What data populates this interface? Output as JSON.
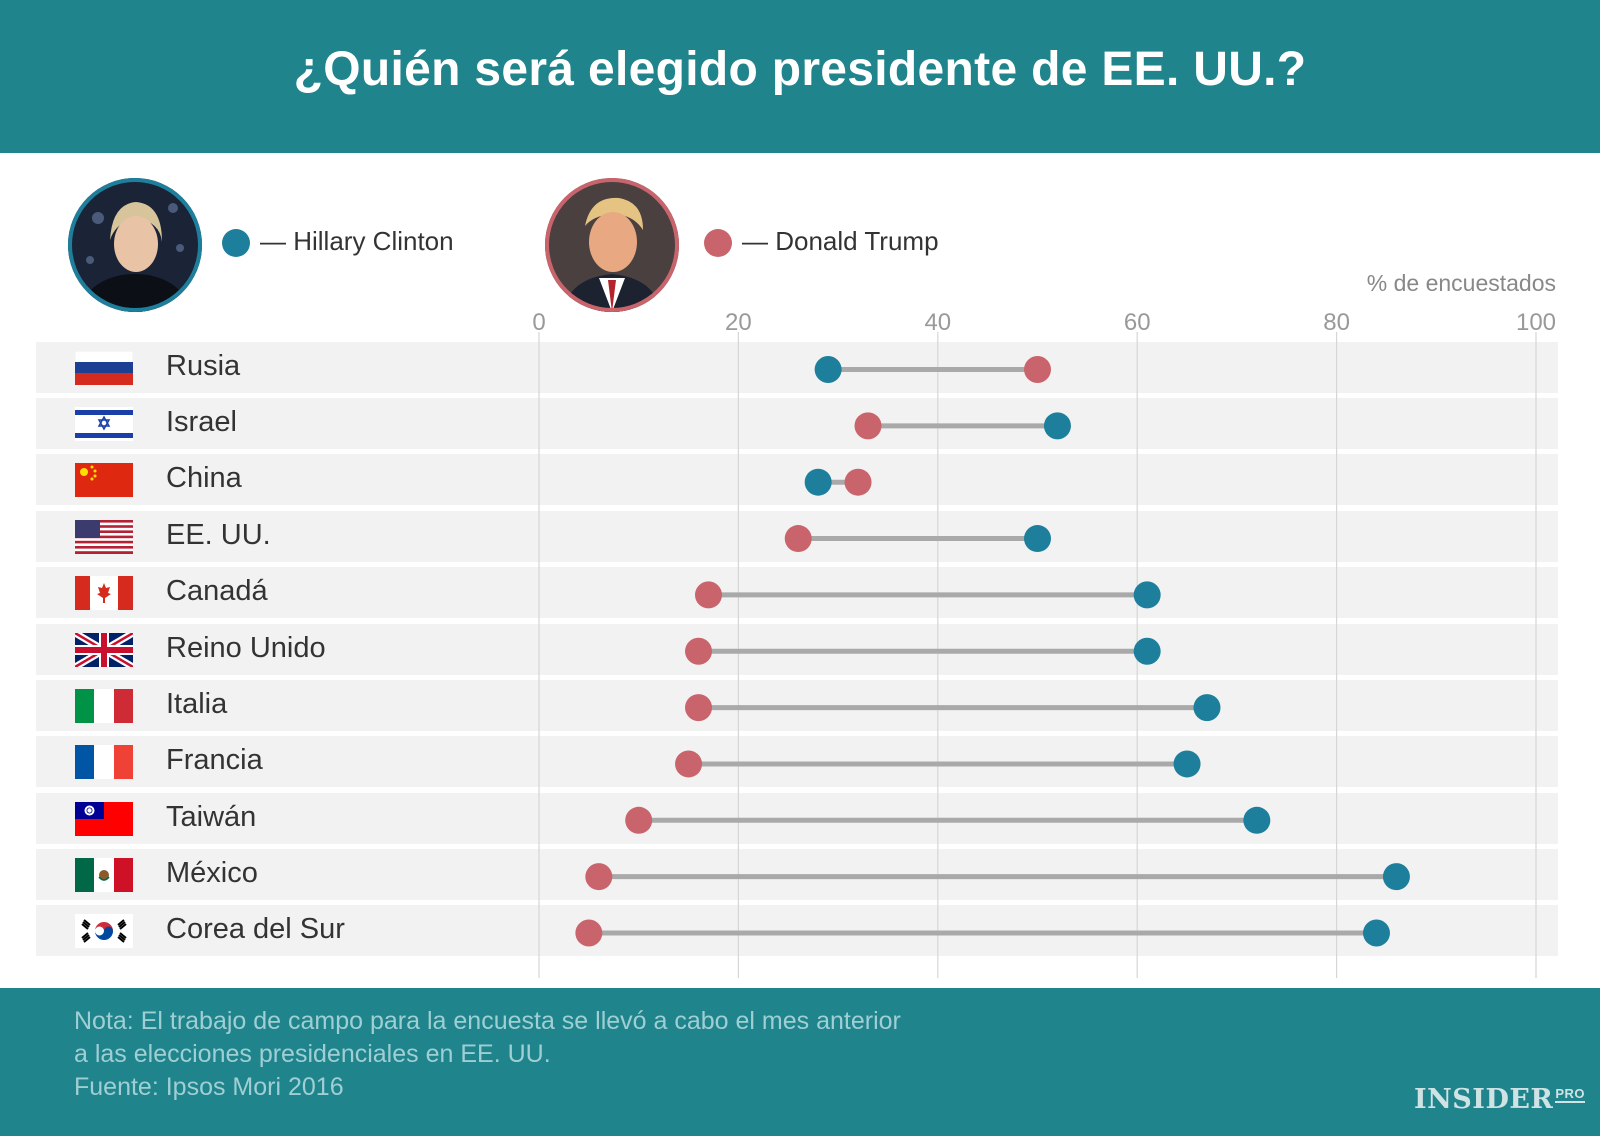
{
  "title": "¿Quién será elegido presidente de EE. UU.?",
  "legend": {
    "clinton_label": "— Hillary Clinton",
    "trump_label": "— Donald Trump",
    "clinton_color": "#1d7f9c",
    "trump_color": "#c9646c"
  },
  "chart_data": {
    "type": "dumbbell",
    "title": "¿Quién será elegido presidente de EE. UU.?",
    "xlabel": "% de encuestados",
    "xlim": [
      0,
      100
    ],
    "ticks": [
      "0",
      "20",
      "40",
      "60",
      "80",
      "100"
    ],
    "categories": [
      "Rusia",
      "Israel",
      "China",
      "EE. UU.",
      "Canadá",
      "Reino Unido",
      "Italia",
      "Francia",
      "Taiwán",
      "México",
      "Corea del Sur"
    ],
    "series": [
      {
        "name": "Hillary Clinton",
        "values": [
          29,
          52,
          28,
          50,
          61,
          61,
          67,
          65,
          72,
          86,
          84
        ]
      },
      {
        "name": "Donald Trump",
        "values": [
          50,
          33,
          32,
          26,
          17,
          16,
          16,
          15,
          10,
          6,
          5
        ]
      }
    ]
  },
  "footer": {
    "note_line1": "Nota: El trabajo de campo para la encuesta se llevó a cabo el mes anterior",
    "note_line2": "a las elecciones presidenciales en EE. UU.",
    "source": "Fuente: Ipsos Mori 2016",
    "brand": "INSIDER",
    "brand_sup": "PRO"
  }
}
